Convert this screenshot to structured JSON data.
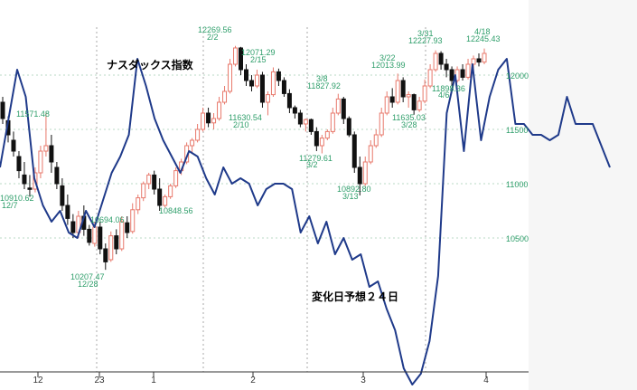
{
  "chart_data": {
    "type": "candlestick",
    "title": "ナスダックス指数",
    "annotation": "変化日予想２４日",
    "y_axis_labels": [
      "12000",
      "11500",
      "11000",
      "10500"
    ],
    "x_ticks": [
      "12",
      "23",
      "1",
      "2",
      "3",
      "4"
    ],
    "price_annotations": [
      {
        "value": "12269.56",
        "date": "2/2"
      },
      {
        "value": "12071.29",
        "date": "2/15"
      },
      {
        "value": "11827.92",
        "date": "3/8"
      },
      {
        "value": "12013.99",
        "date": "3/22"
      },
      {
        "value": "12227.93",
        "date": "3/31"
      },
      {
        "value": "12245.43",
        "date": "4/18"
      },
      {
        "value": "11898.36",
        "date": "4/6"
      },
      {
        "value": "11630.54",
        "date": "2/10"
      },
      {
        "value": "11635.03",
        "date": "3/28"
      },
      {
        "value": "11279.61",
        "date": "3/2"
      },
      {
        "value": "10892.80",
        "date": "3/13"
      },
      {
        "value": "10207.47",
        "date": "12/28"
      },
      {
        "value": "10910.62",
        "date": "12/7"
      },
      {
        "value": "11571.48",
        "date": ""
      },
      {
        "value": "10694.06",
        "date": ""
      },
      {
        "value": "10848.56",
        "date": ""
      }
    ],
    "candles": [
      {
        "o": 11750,
        "h": 11800,
        "l": 11550,
        "c": 11600
      },
      {
        "o": 11580,
        "h": 11620,
        "l": 11380,
        "c": 11450
      },
      {
        "o": 11400,
        "h": 11480,
        "l": 11250,
        "c": 11300
      },
      {
        "o": 11250,
        "h": 11300,
        "l": 11050,
        "c": 11120
      },
      {
        "o": 11080,
        "h": 11200,
        "l": 10950,
        "c": 11000
      },
      {
        "o": 10960,
        "h": 11080,
        "l": 10880,
        "c": 10950
      },
      {
        "o": 10950,
        "h": 11150,
        "l": 10920,
        "c": 11100
      },
      {
        "o": 11100,
        "h": 11350,
        "l": 11050,
        "c": 11300
      },
      {
        "o": 11300,
        "h": 11650,
        "l": 11250,
        "c": 11350
      },
      {
        "o": 11350,
        "h": 11450,
        "l": 11100,
        "c": 11200
      },
      {
        "o": 11150,
        "h": 11200,
        "l": 10950,
        "c": 11000
      },
      {
        "o": 10980,
        "h": 11050,
        "l": 10750,
        "c": 10800
      },
      {
        "o": 10800,
        "h": 10900,
        "l": 10620,
        "c": 10680
      },
      {
        "o": 10650,
        "h": 10720,
        "l": 10500,
        "c": 10550
      },
      {
        "o": 10550,
        "h": 10750,
        "l": 10500,
        "c": 10700
      },
      {
        "o": 10700,
        "h": 10800,
        "l": 10520,
        "c": 10580
      },
      {
        "o": 10580,
        "h": 10620,
        "l": 10430,
        "c": 10460
      },
      {
        "o": 10450,
        "h": 10650,
        "l": 10420,
        "c": 10600
      },
      {
        "o": 10600,
        "h": 10650,
        "l": 10350,
        "c": 10400
      },
      {
        "o": 10400,
        "h": 10450,
        "l": 10207,
        "c": 10280
      },
      {
        "o": 10300,
        "h": 10560,
        "l": 10280,
        "c": 10520
      },
      {
        "o": 10520,
        "h": 10580,
        "l": 10350,
        "c": 10400
      },
      {
        "o": 10400,
        "h": 10700,
        "l": 10380,
        "c": 10650
      },
      {
        "o": 10640,
        "h": 10700,
        "l": 10500,
        "c": 10550
      },
      {
        "o": 10560,
        "h": 10820,
        "l": 10540,
        "c": 10760
      },
      {
        "o": 10760,
        "h": 10900,
        "l": 10720,
        "c": 10870
      },
      {
        "o": 10870,
        "h": 11020,
        "l": 10840,
        "c": 11000
      },
      {
        "o": 11000,
        "h": 11100,
        "l": 10950,
        "c": 11080
      },
      {
        "o": 11080,
        "h": 11120,
        "l": 10900,
        "c": 10950
      },
      {
        "o": 10950,
        "h": 11050,
        "l": 10750,
        "c": 10800
      },
      {
        "o": 10800,
        "h": 10900,
        "l": 10780,
        "c": 10880
      },
      {
        "o": 10880,
        "h": 11000,
        "l": 10860,
        "c": 10980
      },
      {
        "o": 10980,
        "h": 11150,
        "l": 10960,
        "c": 11120
      },
      {
        "o": 11120,
        "h": 11230,
        "l": 11080,
        "c": 11200
      },
      {
        "o": 11200,
        "h": 11380,
        "l": 11180,
        "c": 11350
      },
      {
        "o": 11350,
        "h": 11420,
        "l": 11280,
        "c": 11400
      },
      {
        "o": 11400,
        "h": 11550,
        "l": 11380,
        "c": 11500
      },
      {
        "o": 11500,
        "h": 11700,
        "l": 11480,
        "c": 11650
      },
      {
        "o": 11650,
        "h": 11700,
        "l": 11520,
        "c": 11560
      },
      {
        "o": 11560,
        "h": 11650,
        "l": 11500,
        "c": 11600
      },
      {
        "o": 11600,
        "h": 11800,
        "l": 11580,
        "c": 11750
      },
      {
        "o": 11750,
        "h": 11900,
        "l": 11730,
        "c": 11850
      },
      {
        "o": 11850,
        "h": 12150,
        "l": 11830,
        "c": 12100
      },
      {
        "o": 12100,
        "h": 12269,
        "l": 12080,
        "c": 12250
      },
      {
        "o": 12250,
        "h": 12260,
        "l": 12000,
        "c": 12050
      },
      {
        "o": 12050,
        "h": 12100,
        "l": 11900,
        "c": 11950
      },
      {
        "o": 11950,
        "h": 12000,
        "l": 11850,
        "c": 11900
      },
      {
        "o": 11900,
        "h": 12050,
        "l": 11880,
        "c": 12000
      },
      {
        "o": 12000,
        "h": 12030,
        "l": 11700,
        "c": 11750
      },
      {
        "o": 11750,
        "h": 11850,
        "l": 11630,
        "c": 11820
      },
      {
        "o": 11820,
        "h": 12071,
        "l": 11800,
        "c": 12030
      },
      {
        "o": 12030,
        "h": 12060,
        "l": 11900,
        "c": 11950
      },
      {
        "o": 11950,
        "h": 11980,
        "l": 11800,
        "c": 11830
      },
      {
        "o": 11830,
        "h": 11870,
        "l": 11650,
        "c": 11700
      },
      {
        "o": 11700,
        "h": 11720,
        "l": 11600,
        "c": 11650
      },
      {
        "o": 11650,
        "h": 11680,
        "l": 11520,
        "c": 11550
      },
      {
        "o": 11550,
        "h": 11600,
        "l": 11480,
        "c": 11590
      },
      {
        "o": 11590,
        "h": 11600,
        "l": 11450,
        "c": 11480
      },
      {
        "o": 11480,
        "h": 11520,
        "l": 11300,
        "c": 11350
      },
      {
        "o": 11350,
        "h": 11450,
        "l": 11279,
        "c": 11420
      },
      {
        "o": 11420,
        "h": 11500,
        "l": 11400,
        "c": 11480
      },
      {
        "o": 11480,
        "h": 11700,
        "l": 11460,
        "c": 11650
      },
      {
        "o": 11650,
        "h": 11828,
        "l": 11630,
        "c": 11780
      },
      {
        "o": 11780,
        "h": 11800,
        "l": 11550,
        "c": 11600
      },
      {
        "o": 11600,
        "h": 11620,
        "l": 11430,
        "c": 11450
      },
      {
        "o": 11450,
        "h": 11480,
        "l": 11100,
        "c": 11150
      },
      {
        "o": 11150,
        "h": 11250,
        "l": 10892,
        "c": 11000
      },
      {
        "o": 11000,
        "h": 11250,
        "l": 10980,
        "c": 11200
      },
      {
        "o": 11200,
        "h": 11400,
        "l": 11180,
        "c": 11350
      },
      {
        "o": 11350,
        "h": 11500,
        "l": 11330,
        "c": 11450
      },
      {
        "o": 11450,
        "h": 11700,
        "l": 11430,
        "c": 11650
      },
      {
        "o": 11650,
        "h": 11850,
        "l": 11630,
        "c": 11800
      },
      {
        "o": 11800,
        "h": 11880,
        "l": 11700,
        "c": 11750
      },
      {
        "o": 11750,
        "h": 12014,
        "l": 11730,
        "c": 11950
      },
      {
        "o": 11950,
        "h": 11980,
        "l": 11750,
        "c": 11800
      },
      {
        "o": 11800,
        "h": 11850,
        "l": 11700,
        "c": 11820
      },
      {
        "o": 11820,
        "h": 11830,
        "l": 11635,
        "c": 11680
      },
      {
        "o": 11680,
        "h": 11800,
        "l": 11660,
        "c": 11760
      },
      {
        "o": 11760,
        "h": 11960,
        "l": 11740,
        "c": 11900
      },
      {
        "o": 11900,
        "h": 12100,
        "l": 11880,
        "c": 12050
      },
      {
        "o": 12050,
        "h": 12228,
        "l": 12030,
        "c": 12200
      },
      {
        "o": 12200,
        "h": 12220,
        "l": 12050,
        "c": 12100
      },
      {
        "o": 12100,
        "h": 12150,
        "l": 11980,
        "c": 12050
      },
      {
        "o": 12050,
        "h": 12080,
        "l": 11898,
        "c": 11950
      },
      {
        "o": 11950,
        "h": 12080,
        "l": 11930,
        "c": 12050
      },
      {
        "o": 12050,
        "h": 12100,
        "l": 11950,
        "c": 11980
      },
      {
        "o": 11980,
        "h": 12150,
        "l": 11960,
        "c": 12100
      },
      {
        "o": 12100,
        "h": 12180,
        "l": 12030,
        "c": 12150
      },
      {
        "o": 12150,
        "h": 12200,
        "l": 12080,
        "c": 12120
      },
      {
        "o": 12120,
        "h": 12245,
        "l": 12100,
        "c": 12200
      }
    ],
    "forecast_line": [
      11150,
      11600,
      12050,
      11800,
      11050,
      10800,
      10650,
      10750,
      10550,
      10500,
      10750,
      10600,
      10850,
      11100,
      11250,
      11450,
      12150,
      11900,
      11600,
      11400,
      11250,
      11100,
      11300,
      11250,
      11050,
      10900,
      11150,
      11000,
      11050,
      11000,
      10800,
      10950,
      11000,
      11000,
      10950,
      10550,
      10700,
      10450,
      10650,
      10350,
      10500,
      10300,
      10350,
      10050,
      10100,
      9850,
      9650,
      9300,
      9150,
      9250,
      9550,
      10150,
      11650,
      12000,
      11300,
      12100,
      11400,
      11800,
      12050,
      12150,
      11550,
      11550,
      11450,
      11450,
      11400,
      11450,
      11800,
      11550,
      11550,
      11550,
      11350,
      11150
    ]
  }
}
